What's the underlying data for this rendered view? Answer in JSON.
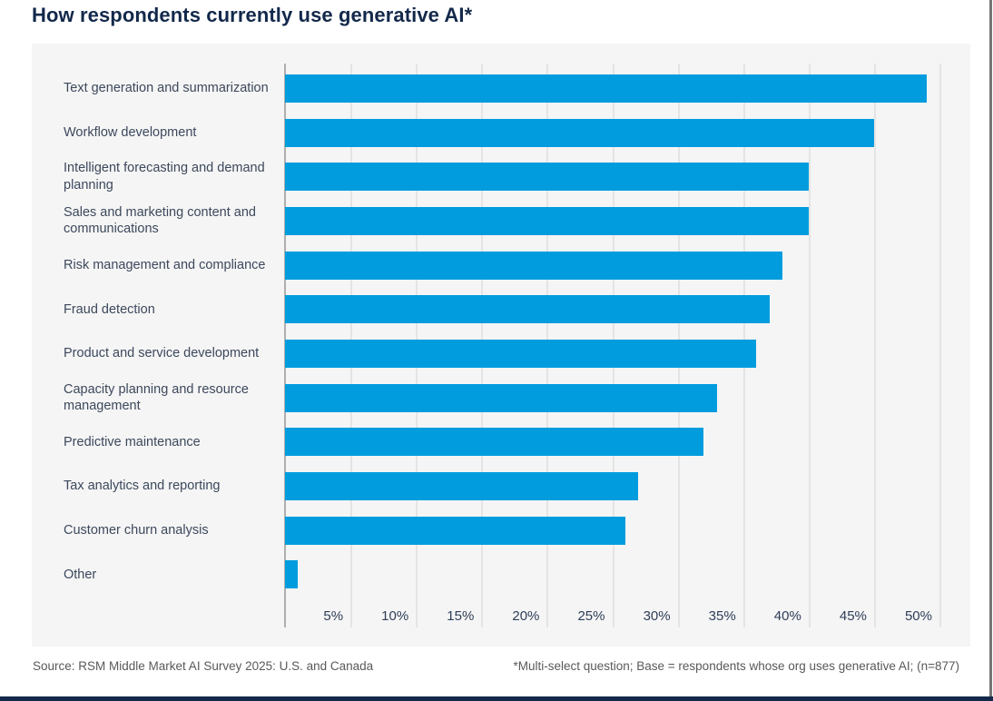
{
  "page": {
    "title": "How respondents currently use generative AI*"
  },
  "chart_data": {
    "type": "bar",
    "orientation": "horizontal",
    "title": "How respondents currently use generative AI*",
    "xlabel": "",
    "ylabel": "",
    "categories": [
      "Text generation and summarization",
      "Workflow development",
      "Intelligent forecasting and demand\nplanning",
      "Sales and marketing content and\ncommunications",
      "Risk management and compliance",
      "Fraud detection",
      "Product and service development",
      "Capacity planning and resource\nmanagement",
      "Predictive maintenance",
      "Tax analytics and reporting",
      "Customer churn analysis",
      "Other"
    ],
    "values": [
      49,
      45,
      40,
      40,
      38,
      37,
      36,
      33,
      32,
      27,
      26,
      1
    ],
    "unit": "%",
    "x_axis": {
      "tick_values": [
        5,
        10,
        15,
        20,
        25,
        30,
        35,
        40,
        45,
        50
      ],
      "tick_labels": [
        "5%",
        "10%",
        "15%",
        "20%",
        "25%",
        "30%",
        "35%",
        "40%",
        "45%",
        "50%"
      ],
      "min": 0,
      "max": 52.3,
      "grid": true
    },
    "legend": null,
    "colors": {
      "bar": "#009CDE",
      "panel_background": "#F5F5F5",
      "title_text": "#13294B",
      "category_text": "#3C485C",
      "tick_text": "#2E3D57",
      "gridline": "#E4E4E4",
      "axis_line": "#AFAFAF",
      "footer_text": "#58595B",
      "bottom_rule": "#13294B"
    }
  },
  "footer": {
    "source": "Source: RSM Middle Market AI Survey 2025: U.S. and Canada",
    "note": "*Multi-select question; Base = respondents whose org uses generative AI; (n=877)"
  }
}
